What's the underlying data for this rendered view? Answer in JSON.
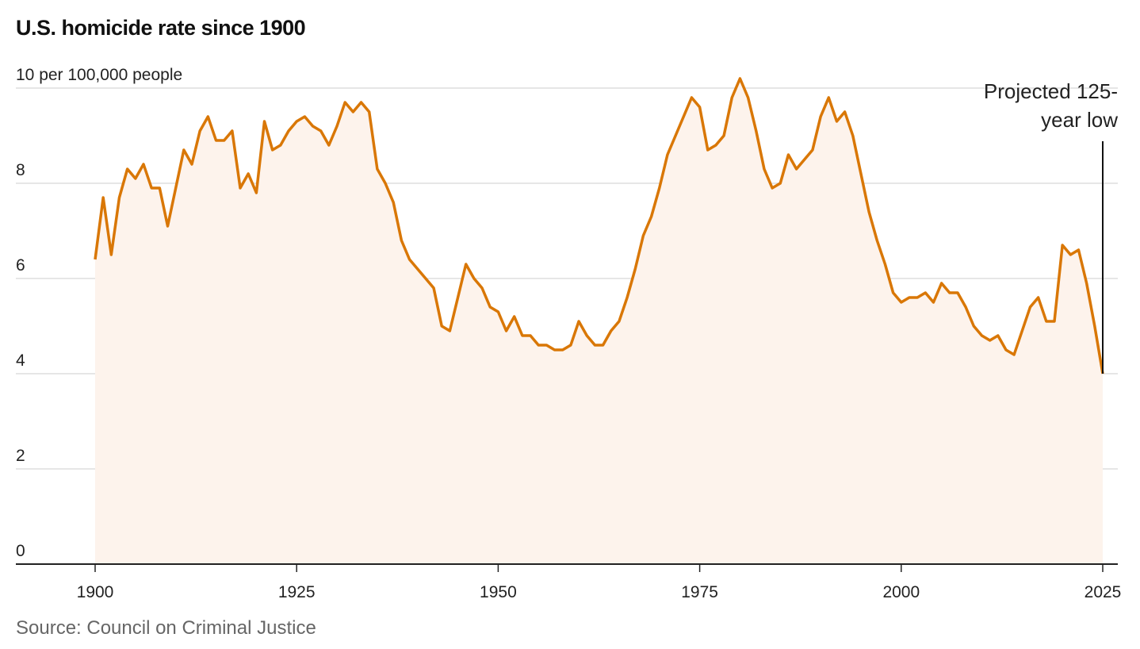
{
  "chart_data": {
    "type": "area",
    "title": "U.S. homicide rate since 1900",
    "ylabel": "per 100,000 people",
    "y_unit_label": "10 per 100,000 people",
    "xlabel": "",
    "xlim": [
      1900,
      2025
    ],
    "ylim": [
      0,
      10
    ],
    "x_ticks": [
      1900,
      1925,
      1950,
      1975,
      2000,
      2025
    ],
    "y_ticks": [
      0,
      2,
      4,
      6,
      8,
      10
    ],
    "grid": true,
    "colors": {
      "line": "#d97706",
      "fill": "#fdf3ec",
      "grid": "#dddddd",
      "axis": "#222222"
    },
    "annotation": {
      "text_line1": "Projected 125-",
      "text_line2": "year low",
      "x": 2025
    },
    "source": "Source: Council on Criminal Justice",
    "series": [
      {
        "x": [
          1900,
          1901,
          1902,
          1903,
          1904,
          1905,
          1906,
          1907,
          1908,
          1909,
          1910,
          1911,
          1912,
          1913,
          1914,
          1915,
          1916,
          1917,
          1918,
          1919,
          1920,
          1921,
          1922,
          1923,
          1924,
          1925,
          1926,
          1927,
          1928,
          1929,
          1930,
          1931,
          1932,
          1933,
          1934,
          1935,
          1936,
          1937,
          1938,
          1939,
          1940,
          1941,
          1942,
          1943,
          1944,
          1945,
          1946,
          1947,
          1948,
          1949,
          1950,
          1951,
          1952,
          1953,
          1954,
          1955,
          1956,
          1957,
          1958,
          1959,
          1960,
          1961,
          1962,
          1963,
          1964,
          1965,
          1966,
          1967,
          1968,
          1969,
          1970,
          1971,
          1972,
          1973,
          1974,
          1975,
          1976,
          1977,
          1978,
          1979,
          1980,
          1981,
          1982,
          1983,
          1984,
          1985,
          1986,
          1987,
          1988,
          1989,
          1990,
          1991,
          1992,
          1993,
          1994,
          1995,
          1996,
          1997,
          1998,
          1999,
          2000,
          2001,
          2002,
          2003,
          2004,
          2005,
          2006,
          2007,
          2008,
          2009,
          2010,
          2011,
          2012,
          2013,
          2014,
          2015,
          2016,
          2017,
          2018,
          2019,
          2020,
          2021,
          2022,
          2023,
          2024,
          2025
        ],
        "y": [
          6.4,
          7.7,
          6.5,
          7.7,
          8.3,
          8.1,
          8.4,
          7.9,
          7.9,
          7.1,
          7.9,
          8.7,
          8.4,
          9.1,
          9.4,
          8.9,
          8.9,
          9.1,
          7.9,
          8.2,
          7.8,
          9.3,
          8.7,
          8.8,
          9.1,
          9.3,
          9.4,
          9.2,
          9.1,
          8.8,
          9.2,
          9.7,
          9.5,
          9.7,
          9.5,
          8.3,
          8.0,
          7.6,
          6.8,
          6.4,
          6.2,
          6.0,
          5.8,
          5.0,
          4.9,
          5.6,
          6.3,
          6.0,
          5.8,
          5.4,
          5.3,
          4.9,
          5.2,
          4.8,
          4.8,
          4.6,
          4.6,
          4.5,
          4.5,
          4.6,
          5.1,
          4.8,
          4.6,
          4.6,
          4.9,
          5.1,
          5.6,
          6.2,
          6.9,
          7.3,
          7.9,
          8.6,
          9.0,
          9.4,
          9.8,
          9.6,
          8.7,
          8.8,
          9.0,
          9.8,
          10.2,
          9.8,
          9.1,
          8.3,
          7.9,
          8.0,
          8.6,
          8.3,
          8.5,
          8.7,
          9.4,
          9.8,
          9.3,
          9.5,
          9.0,
          8.2,
          7.4,
          6.8,
          6.3,
          5.7,
          5.5,
          5.6,
          5.6,
          5.7,
          5.5,
          5.9,
          5.7,
          5.7,
          5.4,
          5.0,
          4.8,
          4.7,
          4.8,
          4.5,
          4.4,
          4.9,
          5.4,
          5.6,
          5.1,
          5.1,
          6.7,
          6.5,
          6.6,
          5.9,
          5.0,
          4.0
        ]
      }
    ]
  }
}
